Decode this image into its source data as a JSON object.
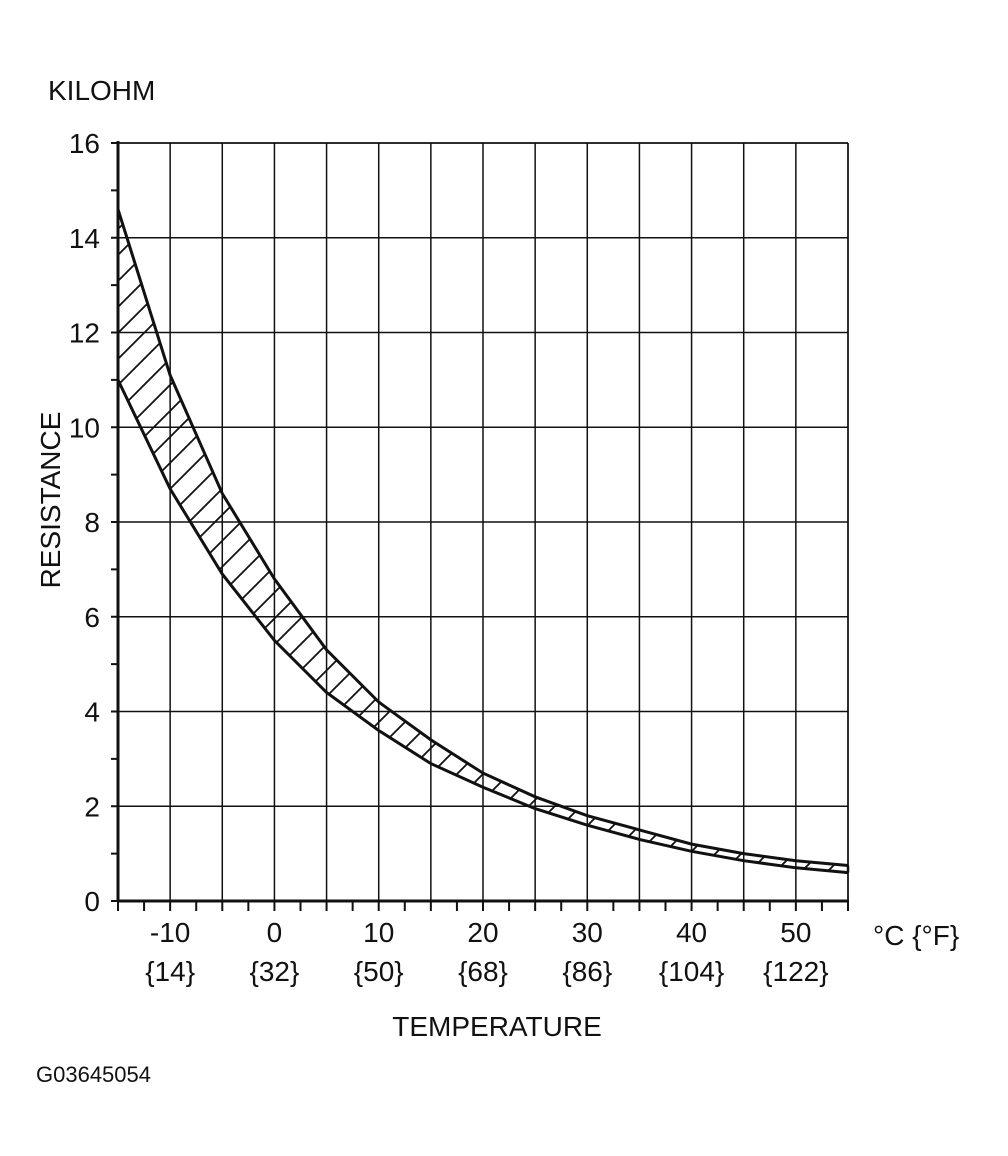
{
  "chart_data": {
    "type": "area",
    "title": "",
    "ylabel_unit": "KILOHM",
    "ylabel": "RESISTANCE",
    "xlabel": "TEMPERATURE",
    "xunit": "°C {°F}",
    "xlim": [
      -15,
      55
    ],
    "ylim": [
      0,
      16
    ],
    "y_ticks": [
      0,
      2,
      4,
      6,
      8,
      10,
      12,
      14,
      16
    ],
    "x_ticks": [
      {
        "c": -10,
        "c_label": "-10",
        "f_label": "{14}"
      },
      {
        "c": 0,
        "c_label": "0",
        "f_label": "{32}"
      },
      {
        "c": 10,
        "c_label": "10",
        "f_label": "{50}"
      },
      {
        "c": 20,
        "c_label": "20",
        "f_label": "{68}"
      },
      {
        "c": 30,
        "c_label": "30",
        "f_label": "{86}"
      },
      {
        "c": 40,
        "c_label": "40",
        "f_label": "{104}"
      },
      {
        "c": 50,
        "c_label": "50",
        "f_label": "{122}"
      }
    ],
    "grid": true,
    "series": [
      {
        "role": "upper bound",
        "x": [
          -15,
          -10,
          -5,
          0,
          5,
          10,
          15,
          20,
          25,
          30,
          35,
          40,
          45,
          50,
          55
        ],
        "y": [
          14.6,
          11.1,
          8.6,
          6.8,
          5.3,
          4.2,
          3.4,
          2.7,
          2.2,
          1.8,
          1.5,
          1.2,
          1.0,
          0.85,
          0.75
        ]
      },
      {
        "role": "lower bound",
        "x": [
          -15,
          -10,
          -5,
          0,
          5,
          10,
          15,
          20,
          25,
          30,
          35,
          40,
          45,
          50,
          55
        ],
        "y": [
          11.0,
          8.7,
          6.9,
          5.5,
          4.4,
          3.6,
          2.9,
          2.4,
          1.95,
          1.6,
          1.3,
          1.05,
          0.85,
          0.7,
          0.6
        ]
      }
    ],
    "fill": "hatched band between bounds"
  },
  "figure_code": "G03645054",
  "colors": {
    "ink": "#111111",
    "background": "#ffffff"
  }
}
